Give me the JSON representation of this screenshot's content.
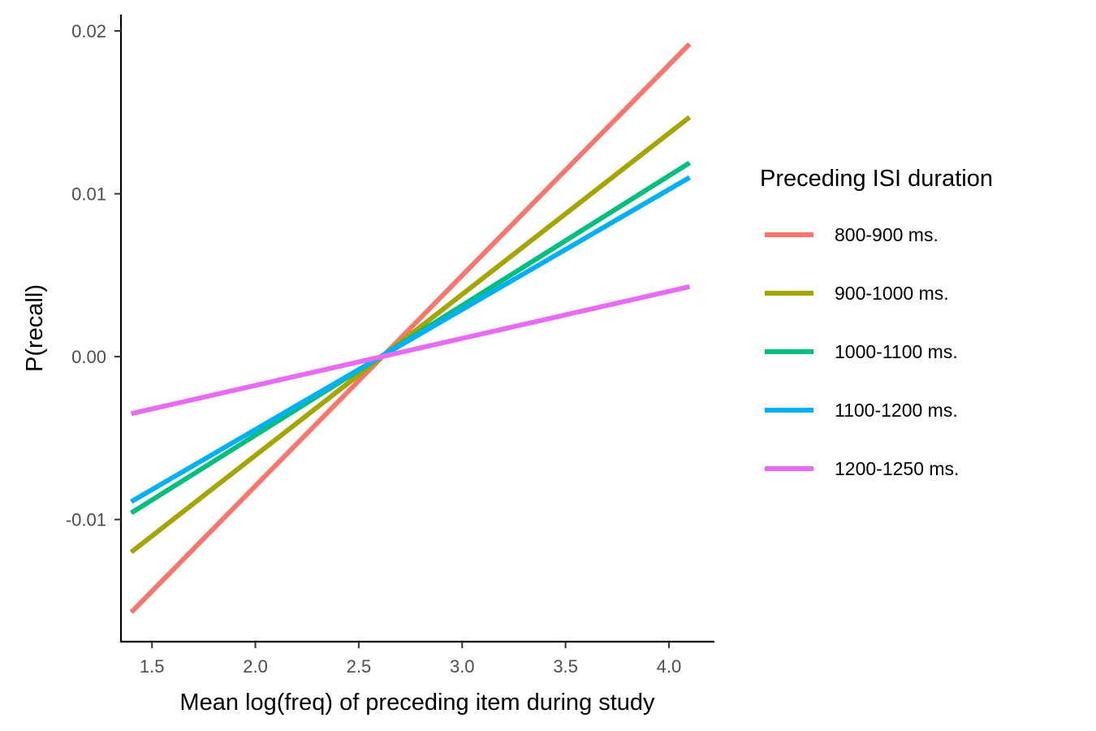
{
  "chart_data": {
    "type": "line",
    "xlabel": "Mean log(freq) of preceding item during study",
    "ylabel": "P(recall)",
    "xlim": [
      1.35,
      4.22
    ],
    "ylim": [
      -0.0175,
      0.021
    ],
    "x_ticks": [
      1.5,
      2.0,
      2.5,
      3.0,
      3.5,
      4.0
    ],
    "x_tick_labels": [
      "1.5",
      "2.0",
      "2.5",
      "3.0",
      "3.5",
      "4.0"
    ],
    "y_ticks": [
      -0.01,
      0.0,
      0.01,
      0.02
    ],
    "y_tick_labels": [
      "-0.01",
      "0.00",
      "0.01",
      "0.02"
    ],
    "grid": false,
    "legend": {
      "title": "Preceding ISI duration",
      "placement": "right"
    },
    "series": [
      {
        "name": "800-900 ms.",
        "color": "#F8766D",
        "x": [
          1.4,
          4.1
        ],
        "y": [
          -0.0157,
          0.0192
        ]
      },
      {
        "name": "900-1000 ms.",
        "color": "#A3A500",
        "x": [
          1.4,
          4.1
        ],
        "y": [
          -0.012,
          0.0147
        ]
      },
      {
        "name": "1000-1100 ms.",
        "color": "#00BF7D",
        "x": [
          1.4,
          4.1
        ],
        "y": [
          -0.0096,
          0.0119
        ]
      },
      {
        "name": "1100-1200 ms.",
        "color": "#00B0F6",
        "x": [
          1.4,
          4.1
        ],
        "y": [
          -0.0089,
          0.011
        ]
      },
      {
        "name": "1200-1250 ms.",
        "color": "#E76BF3",
        "x": [
          1.4,
          4.1
        ],
        "y": [
          -0.0035,
          0.0043
        ]
      }
    ]
  }
}
